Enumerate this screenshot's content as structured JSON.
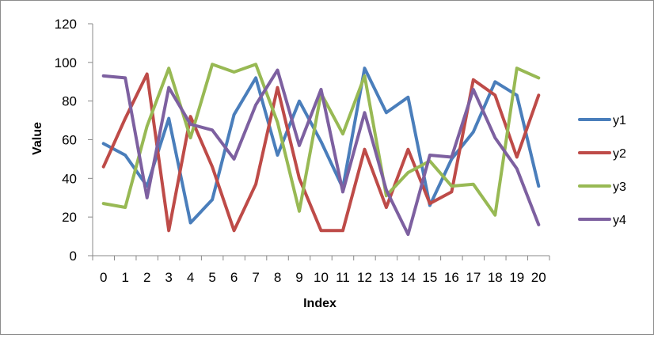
{
  "chart_data": {
    "type": "line",
    "title": "",
    "xlabel": "Index",
    "ylabel": "Value",
    "x": [
      0,
      1,
      2,
      3,
      4,
      5,
      6,
      7,
      8,
      9,
      10,
      11,
      12,
      13,
      14,
      15,
      16,
      17,
      18,
      19,
      20
    ],
    "ylim": [
      0,
      120
    ],
    "yticks": [
      0,
      20,
      40,
      60,
      80,
      100,
      120
    ],
    "grid": false,
    "legend_position": "right",
    "series": [
      {
        "name": "y1",
        "color": "#4a7ebb",
        "values": [
          58,
          52,
          36,
          71,
          17,
          29,
          73,
          92,
          52,
          80,
          59,
          35,
          97,
          74,
          82,
          26,
          50,
          64,
          90,
          83,
          36
        ]
      },
      {
        "name": "y2",
        "color": "#be4b48",
        "values": [
          46,
          71,
          94,
          13,
          72,
          46,
          13,
          37,
          87,
          40,
          13,
          13,
          55,
          25,
          55,
          27,
          33,
          91,
          83,
          51,
          83
        ]
      },
      {
        "name": "y3",
        "color": "#98b954",
        "values": [
          27,
          25,
          67,
          97,
          61,
          99,
          95,
          99,
          69,
          23,
          84,
          63,
          93,
          31,
          43,
          49,
          36,
          37,
          21,
          97,
          92
        ]
      },
      {
        "name": "y4",
        "color": "#7d60a0",
        "values": [
          93,
          92,
          30,
          87,
          68,
          65,
          50,
          78,
          96,
          57,
          86,
          33,
          74,
          34,
          11,
          52,
          51,
          86,
          61,
          45,
          16
        ]
      }
    ]
  }
}
